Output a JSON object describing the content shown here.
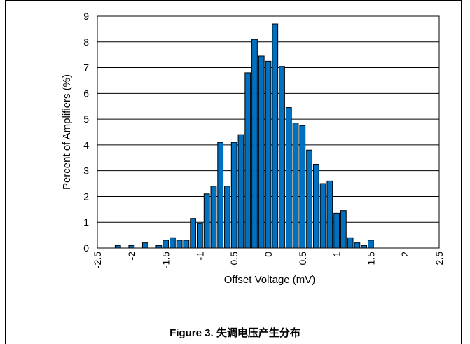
{
  "caption": "Figure 3. 失调电压产生分布",
  "colors": {
    "bar_fill": "#0070C0",
    "bar_stroke": "#000000",
    "grid": "#000000"
  },
  "chart_data": {
    "type": "bar",
    "title": "",
    "xlabel": "Offset Voltage (mV)",
    "ylabel": "Percent of Amplifiers (%)",
    "xlim": [
      -2.5,
      2.5
    ],
    "ylim": [
      0,
      9
    ],
    "x_ticks": [
      "-2.5",
      "-2",
      "-1.5",
      "-1",
      "-0.5",
      "0",
      "0.5",
      "1",
      "1.5",
      "2",
      "2.5"
    ],
    "y_ticks": [
      "0",
      "1",
      "2",
      "3",
      "4",
      "5",
      "6",
      "7",
      "8",
      "9"
    ],
    "grid": "horizontal",
    "bin_width": 0.1,
    "bins": [
      {
        "x": -2.2,
        "y": 0.1
      },
      {
        "x": -2.0,
        "y": 0.1
      },
      {
        "x": -1.8,
        "y": 0.2
      },
      {
        "x": -1.6,
        "y": 0.1
      },
      {
        "x": -1.5,
        "y": 0.3
      },
      {
        "x": -1.4,
        "y": 0.4
      },
      {
        "x": -1.3,
        "y": 0.3
      },
      {
        "x": -1.2,
        "y": 0.3
      },
      {
        "x": -1.1,
        "y": 1.15
      },
      {
        "x": -1.0,
        "y": 0.95
      },
      {
        "x": -0.9,
        "y": 2.1
      },
      {
        "x": -0.8,
        "y": 2.4
      },
      {
        "x": -0.7,
        "y": 4.1
      },
      {
        "x": -0.6,
        "y": 2.4
      },
      {
        "x": -0.5,
        "y": 4.1
      },
      {
        "x": -0.4,
        "y": 4.4
      },
      {
        "x": -0.3,
        "y": 6.8
      },
      {
        "x": -0.2,
        "y": 8.1
      },
      {
        "x": -0.1,
        "y": 7.45
      },
      {
        "x": 0.0,
        "y": 7.25
      },
      {
        "x": 0.1,
        "y": 8.7
      },
      {
        "x": 0.2,
        "y": 7.05
      },
      {
        "x": 0.3,
        "y": 5.45
      },
      {
        "x": 0.4,
        "y": 4.85
      },
      {
        "x": 0.5,
        "y": 4.75
      },
      {
        "x": 0.6,
        "y": 3.8
      },
      {
        "x": 0.7,
        "y": 3.25
      },
      {
        "x": 0.8,
        "y": 2.5
      },
      {
        "x": 0.9,
        "y": 2.6
      },
      {
        "x": 1.0,
        "y": 1.35
      },
      {
        "x": 1.1,
        "y": 1.45
      },
      {
        "x": 1.2,
        "y": 0.4
      },
      {
        "x": 1.3,
        "y": 0.2
      },
      {
        "x": 1.4,
        "y": 0.1
      },
      {
        "x": 1.5,
        "y": 0.3
      }
    ]
  }
}
